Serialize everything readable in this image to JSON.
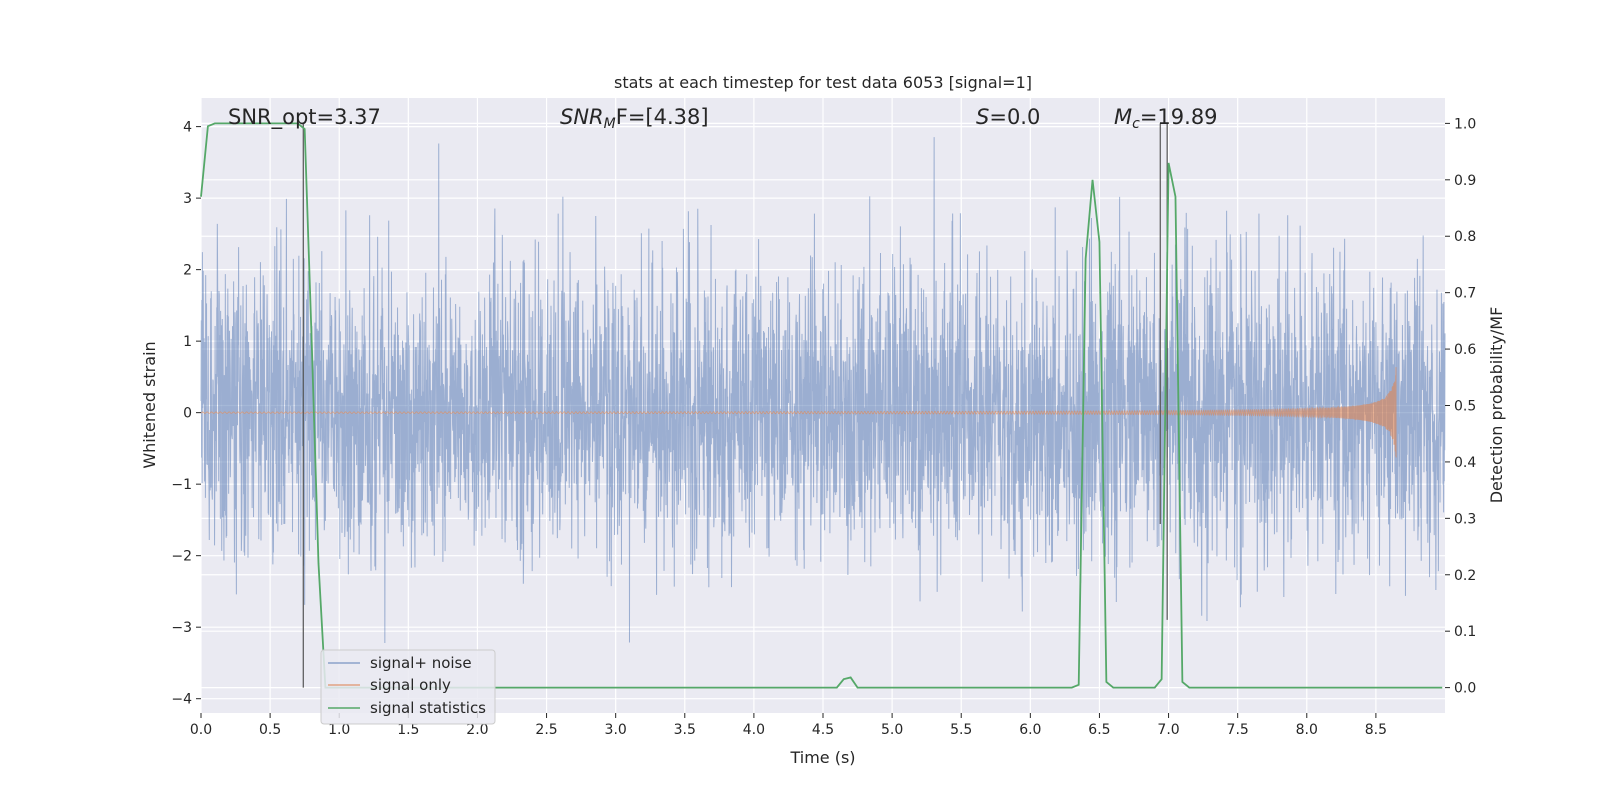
{
  "chart_data": {
    "type": "line",
    "title": "stats at each timestep for test data 6053 [signal=1]",
    "xlabel": "Time (s)",
    "ylabel_left": "Whitened strain",
    "ylabel_right": "Detection probability/MF",
    "xlim": [
      0.0,
      9.0
    ],
    "ylim_left": [
      -4.2,
      4.4
    ],
    "ylim_right": [
      -0.045,
      1.045
    ],
    "x_ticks": [
      "0.0",
      "0.5",
      "1.0",
      "1.5",
      "2.0",
      "2.5",
      "3.0",
      "3.5",
      "4.0",
      "4.5",
      "5.0",
      "5.5",
      "6.0",
      "6.5",
      "7.0",
      "7.5",
      "8.0",
      "8.5"
    ],
    "y_left_ticks": [
      "4",
      "3",
      "2",
      "1",
      "0",
      "−1",
      "−2",
      "−3",
      "−4"
    ],
    "y_right_ticks": [
      "1.0",
      "0.9",
      "0.8",
      "0.7",
      "0.6",
      "0.5",
      "0.4",
      "0.3",
      "0.2",
      "0.1",
      "0.0"
    ],
    "grid": true,
    "legend_position": "lower-left",
    "annotations": {
      "snr_opt": "SNR_opt=3.37",
      "snr_mf_main": "SNR",
      "snr_mf_sub": "M",
      "snr_mf_rest": "F=[4.38]",
      "s_main": "S",
      "s_rest": "=0.0",
      "mc_main": "M",
      "mc_sub": "c",
      "mc_rest": "=19.89"
    },
    "series": [
      {
        "name": "signal+ noise",
        "color": "#4c72b0",
        "description_range": [
          -3.6,
          4.0
        ],
        "noise_std": 1.0,
        "x_range": [
          0.0,
          9.0
        ]
      },
      {
        "name": "signal only",
        "color": "#dd8452",
        "chirp_end": 8.65,
        "chirp_max_amplitude": 0.75
      },
      {
        "name": "signal statistics",
        "color": "#55a868",
        "x": [
          0.0,
          0.05,
          0.1,
          0.15,
          0.2,
          0.3,
          0.4,
          0.5,
          0.6,
          0.65,
          0.7,
          0.75,
          0.8,
          0.85,
          0.9,
          1.0,
          4.6,
          4.65,
          4.7,
          4.75,
          4.8,
          6.3,
          6.35,
          6.4,
          6.45,
          6.5,
          6.55,
          6.6,
          6.9,
          6.95,
          7.0,
          7.05,
          7.1,
          7.15,
          8.98
        ],
        "y": [
          0.87,
          0.995,
          1.0,
          1.0,
          1.0,
          1.0,
          1.0,
          1.0,
          1.0,
          1.0,
          1.0,
          0.99,
          0.62,
          0.22,
          0.0,
          0.0,
          0.0,
          0.015,
          0.018,
          0.0,
          0.0,
          0.0,
          0.005,
          0.76,
          0.9,
          0.79,
          0.01,
          0.0,
          0.0,
          0.015,
          0.93,
          0.87,
          0.01,
          0.0,
          0.0
        ]
      }
    ],
    "vertical_markers": [
      {
        "x": 0.74,
        "y_bottom": 0.0,
        "y_top": 1.0
      },
      {
        "x": 6.94,
        "y_bottom": 0.29,
        "y_top": 1.0
      },
      {
        "x": 6.99,
        "y_bottom": 0.12,
        "y_top": 1.0
      }
    ]
  }
}
